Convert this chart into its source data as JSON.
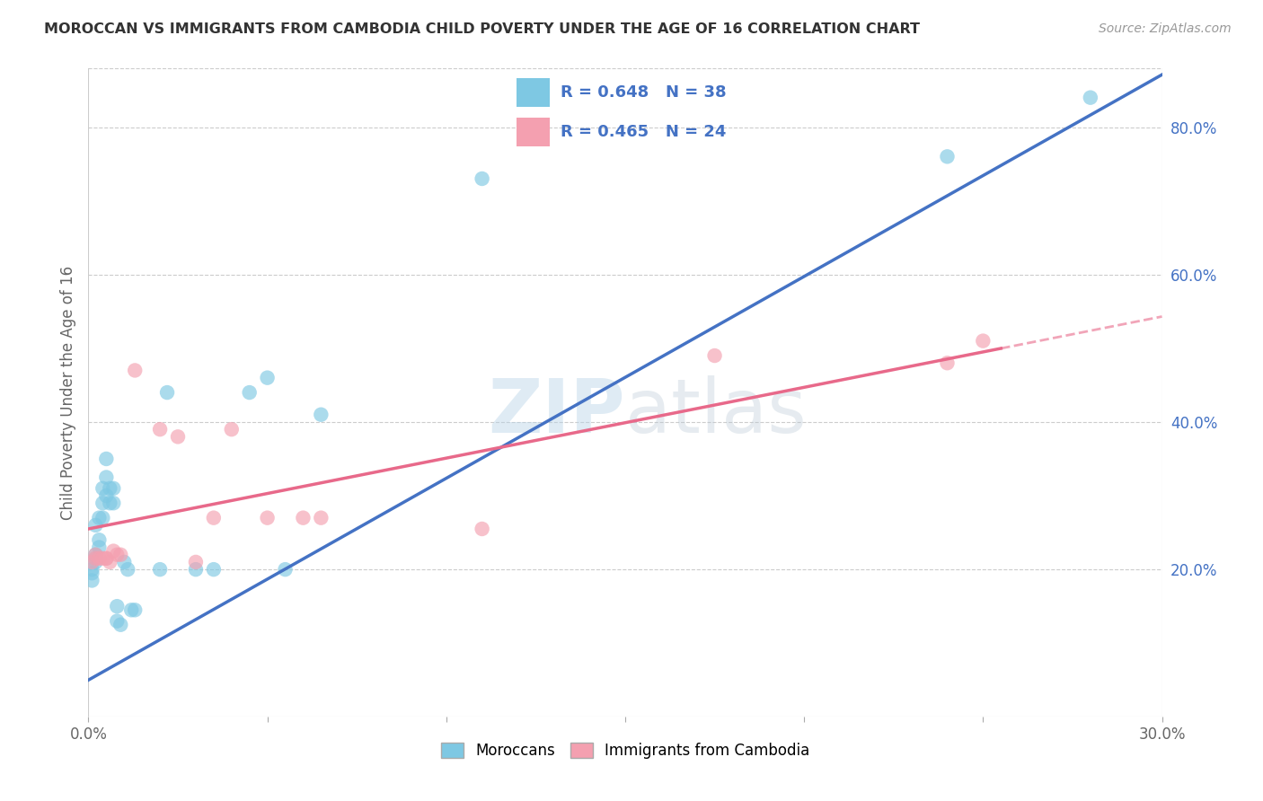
{
  "title": "MOROCCAN VS IMMIGRANTS FROM CAMBODIA CHILD POVERTY UNDER THE AGE OF 16 CORRELATION CHART",
  "source": "Source: ZipAtlas.com",
  "ylabel": "Child Poverty Under the Age of 16",
  "x_min": 0.0,
  "x_max": 0.3,
  "y_min": 0.0,
  "y_max": 0.88,
  "x_ticks": [
    0.0,
    0.05,
    0.1,
    0.15,
    0.2,
    0.25,
    0.3
  ],
  "x_tick_labels": [
    "0.0%",
    "",
    "",
    "",
    "",
    "",
    "30.0%"
  ],
  "y_ticks_right": [
    0.2,
    0.4,
    0.6,
    0.8
  ],
  "y_tick_labels_right": [
    "20.0%",
    "40.0%",
    "60.0%",
    "80.0%"
  ],
  "moroccan_color": "#7ec8e3",
  "cambodia_color": "#f4a0b0",
  "moroccan_line_color": "#4472c4",
  "cambodia_line_color": "#e8698a",
  "moroccan_R": 0.648,
  "moroccan_N": 38,
  "cambodia_R": 0.465,
  "cambodia_N": 24,
  "legend_text_color": "#4472c4",
  "watermark": "ZIPatlas",
  "grid_color": "#cccccc",
  "moroccan_x": [
    0.001,
    0.001,
    0.001,
    0.002,
    0.002,
    0.002,
    0.002,
    0.003,
    0.003,
    0.003,
    0.004,
    0.004,
    0.004,
    0.005,
    0.005,
    0.005,
    0.006,
    0.006,
    0.007,
    0.007,
    0.008,
    0.008,
    0.009,
    0.01,
    0.011,
    0.012,
    0.013,
    0.02,
    0.022,
    0.03,
    0.035,
    0.045,
    0.05,
    0.055,
    0.065,
    0.11,
    0.24,
    0.28
  ],
  "moroccan_y": [
    0.2,
    0.195,
    0.185,
    0.215,
    0.21,
    0.22,
    0.26,
    0.23,
    0.24,
    0.27,
    0.29,
    0.31,
    0.27,
    0.3,
    0.325,
    0.35,
    0.29,
    0.31,
    0.29,
    0.31,
    0.13,
    0.15,
    0.125,
    0.21,
    0.2,
    0.145,
    0.145,
    0.2,
    0.44,
    0.2,
    0.2,
    0.44,
    0.46,
    0.2,
    0.41,
    0.73,
    0.76,
    0.84
  ],
  "cambodia_x": [
    0.001,
    0.002,
    0.002,
    0.003,
    0.004,
    0.005,
    0.005,
    0.006,
    0.007,
    0.008,
    0.009,
    0.013,
    0.02,
    0.025,
    0.03,
    0.035,
    0.04,
    0.05,
    0.06,
    0.065,
    0.11,
    0.175,
    0.24,
    0.25
  ],
  "cambodia_y": [
    0.21,
    0.215,
    0.22,
    0.215,
    0.215,
    0.215,
    0.215,
    0.21,
    0.225,
    0.22,
    0.22,
    0.47,
    0.39,
    0.38,
    0.21,
    0.27,
    0.39,
    0.27,
    0.27,
    0.27,
    0.255,
    0.49,
    0.48,
    0.51
  ]
}
